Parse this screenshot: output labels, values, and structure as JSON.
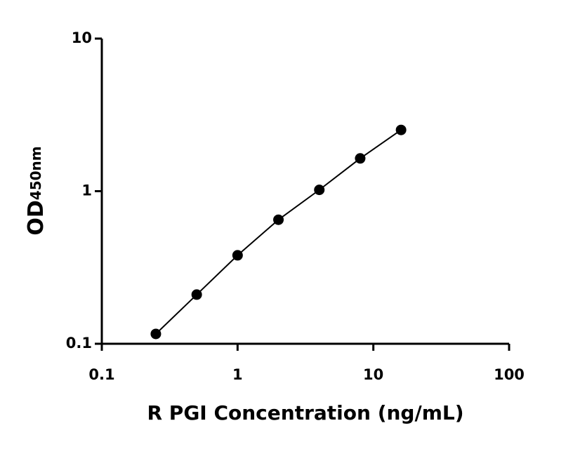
{
  "chart_data": {
    "type": "scatter",
    "xlabel": "R PGI Concentration (ng/mL)",
    "ylabel": "OD",
    "ylabel_sub": "450nm",
    "xscale": "log",
    "yscale": "log",
    "xlim": [
      0.1,
      100
    ],
    "ylim": [
      0.1,
      10
    ],
    "xticks": [
      0.1,
      1,
      10,
      100
    ],
    "yticks": [
      0.1,
      1,
      10
    ],
    "fit_line": true,
    "series": [
      {
        "color": "#000000",
        "x": [
          0.25,
          0.5,
          1,
          2,
          4,
          8,
          16
        ],
        "values": [
          0.116,
          0.21,
          0.38,
          0.65,
          1.02,
          1.64,
          2.52
        ]
      }
    ]
  }
}
